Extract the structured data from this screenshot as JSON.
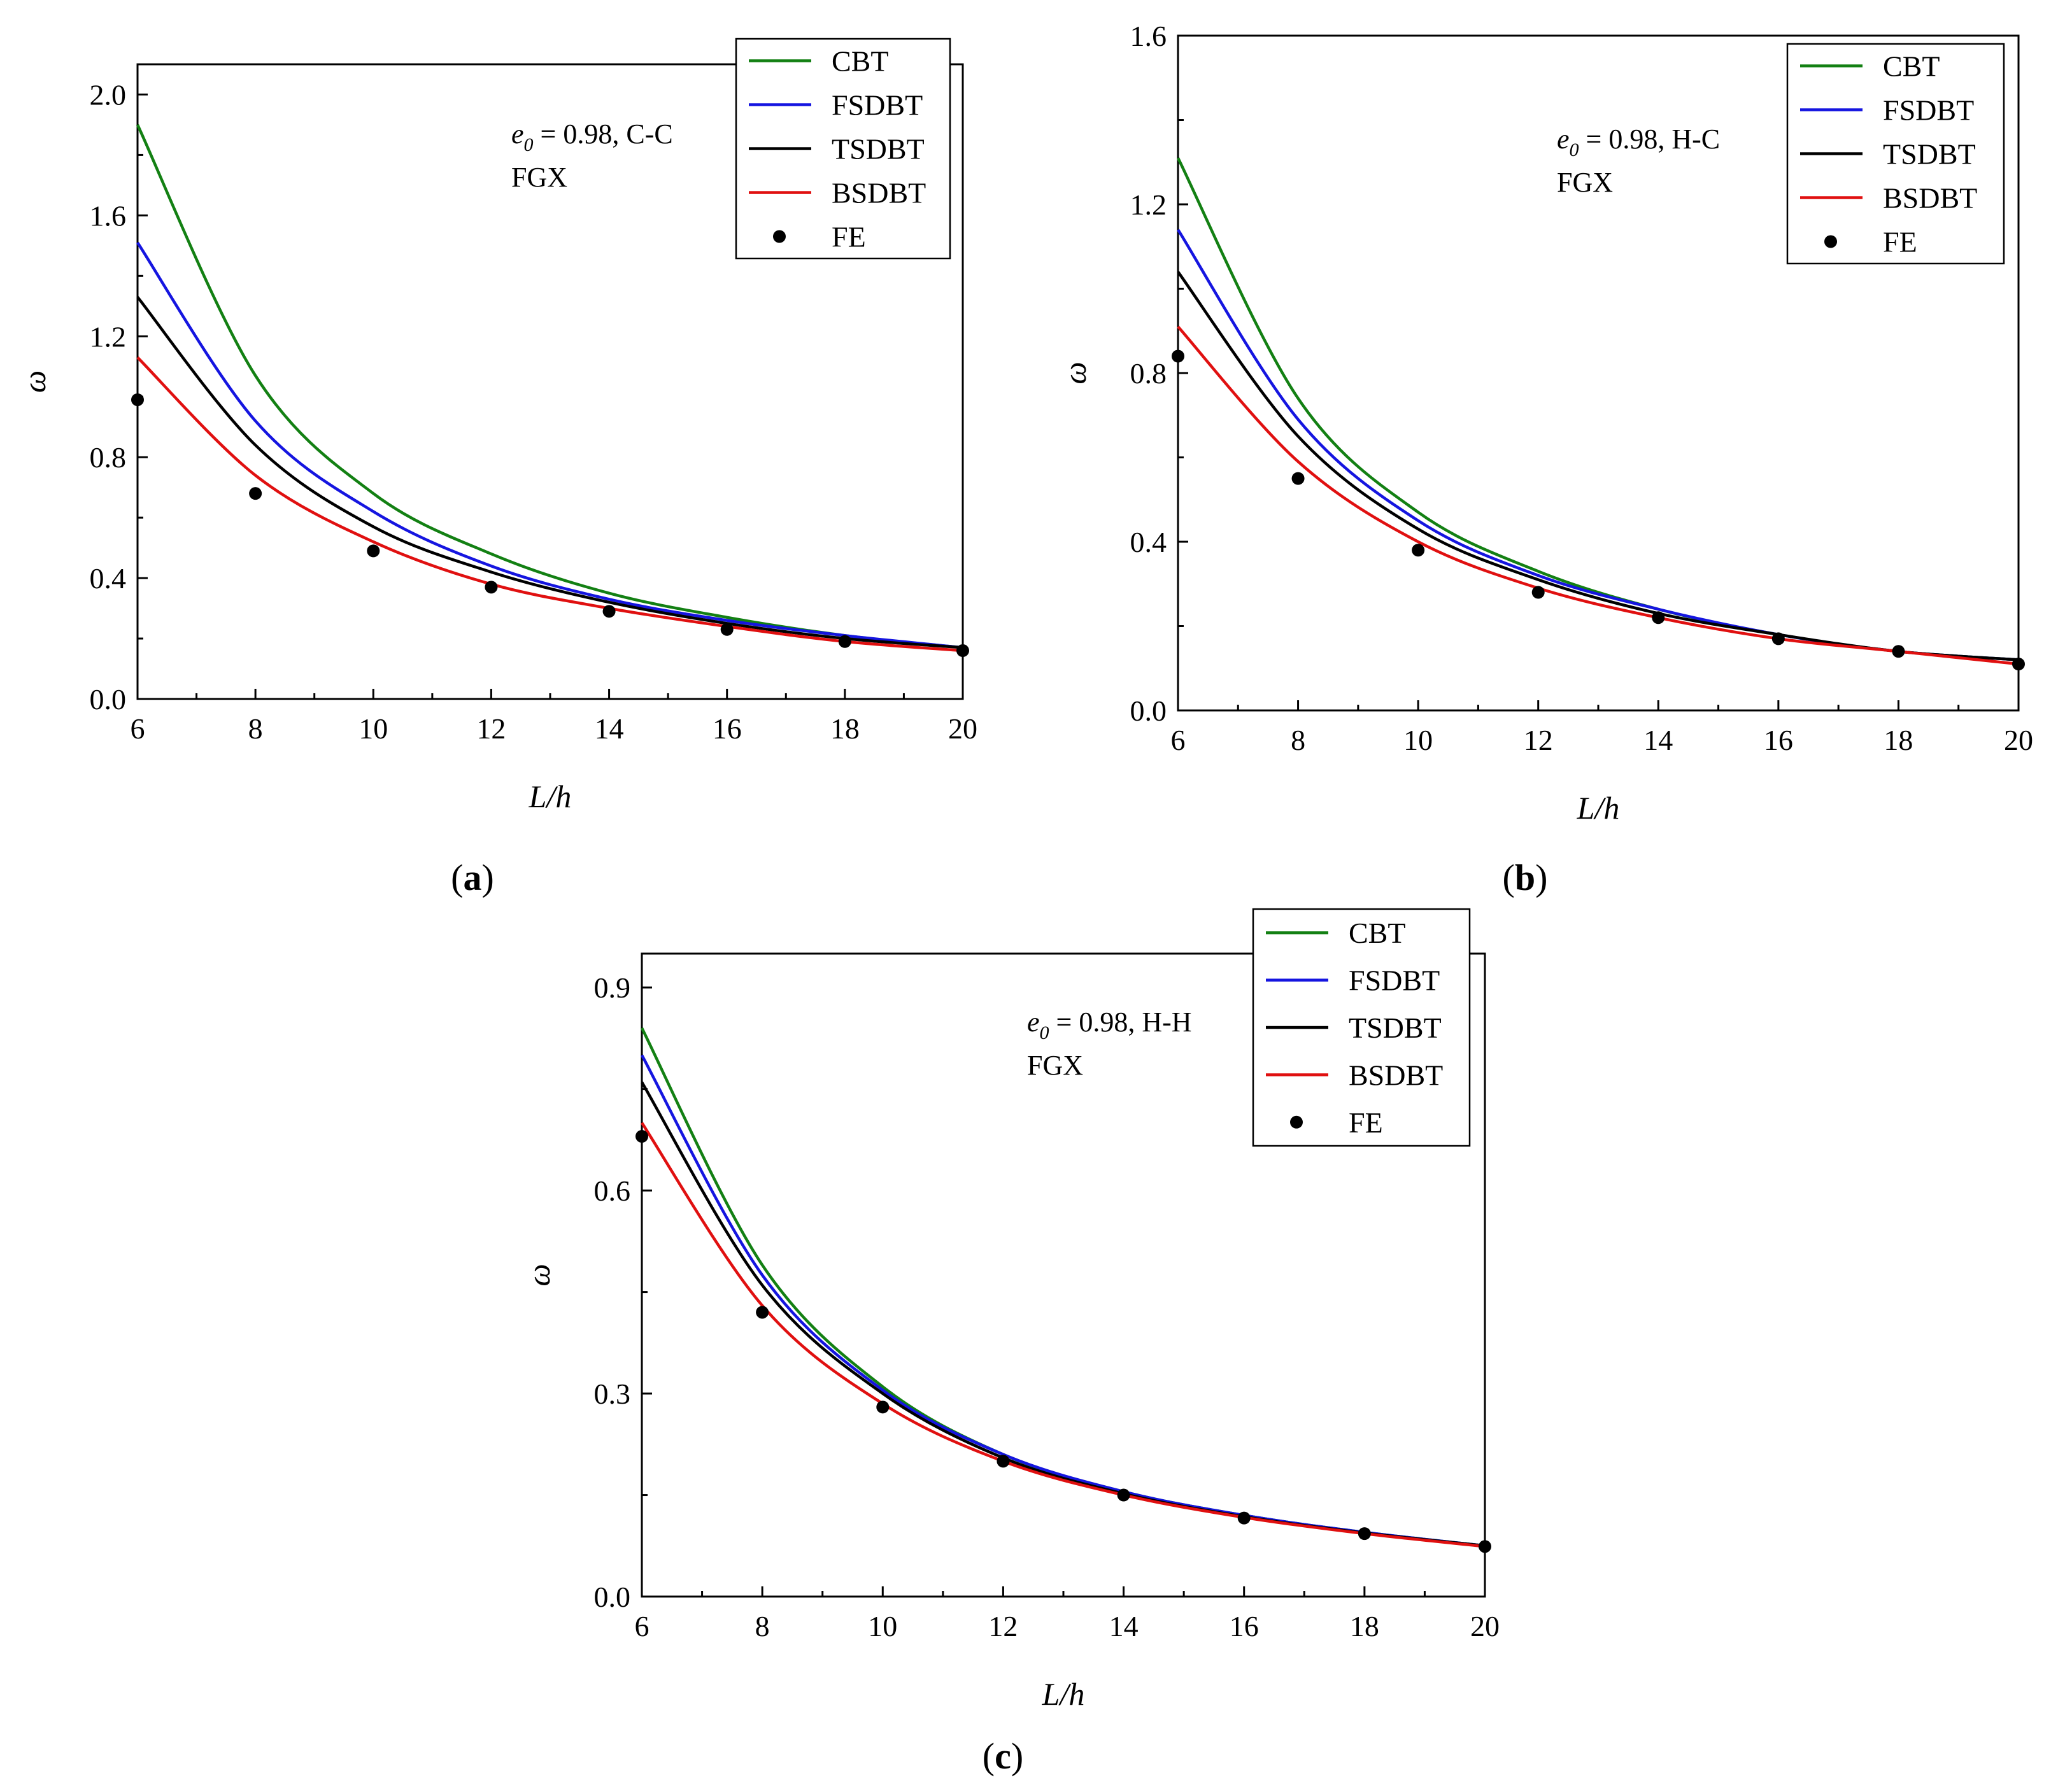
{
  "figure": {
    "series_style": {
      "CBT": "#138013",
      "FSDBT": "#1515e0",
      "TSDBT": "#000000",
      "BSDBT": "#e01010",
      "FE": "#000000"
    }
  },
  "chart_data": [
    {
      "panel": "a",
      "panel_label": "a",
      "type": "line",
      "xlabel": "L/h",
      "ylabel": "ω",
      "xlim": [
        6,
        20
      ],
      "ylim": [
        0.0,
        2.1
      ],
      "x_ticks": [
        6,
        8,
        10,
        12,
        14,
        16,
        18,
        20
      ],
      "x_tick_labels": [
        "6",
        "8",
        "10",
        "12",
        "14",
        "16",
        "18",
        "20"
      ],
      "y_ticks": [
        0.0,
        0.4,
        0.8,
        1.2,
        1.6,
        2.0
      ],
      "y_tick_labels": [
        "0.0",
        "0.4",
        "0.8",
        "1.2",
        "1.6",
        "2.0"
      ],
      "annotation": {
        "e_sym": "e",
        "e_sub": "0",
        "value_text": " = 0.98, C-C",
        "material": "FGX"
      },
      "legend": [
        "CBT",
        "FSDBT",
        "TSDBT",
        "BSDBT",
        "FE"
      ],
      "x": [
        6,
        8,
        10,
        12,
        14,
        16,
        18,
        20
      ],
      "series": [
        {
          "name": "CBT",
          "values": [
            1.9,
            1.07,
            0.68,
            0.48,
            0.35,
            0.27,
            0.21,
            0.17
          ]
        },
        {
          "name": "FSDBT",
          "values": [
            1.51,
            0.92,
            0.62,
            0.44,
            0.33,
            0.26,
            0.21,
            0.17
          ]
        },
        {
          "name": "TSDBT",
          "values": [
            1.33,
            0.84,
            0.57,
            0.42,
            0.32,
            0.25,
            0.2,
            0.17
          ]
        },
        {
          "name": "BSDBT",
          "values": [
            1.13,
            0.74,
            0.52,
            0.38,
            0.3,
            0.24,
            0.19,
            0.16
          ]
        },
        {
          "name": "FE",
          "values": [
            0.99,
            0.68,
            0.49,
            0.37,
            0.29,
            0.23,
            0.19,
            0.16
          ]
        }
      ]
    },
    {
      "panel": "b",
      "panel_label": "b",
      "type": "line",
      "xlabel": "L/h",
      "ylabel": "ω",
      "xlim": [
        6,
        20
      ],
      "ylim": [
        0.0,
        1.6
      ],
      "x_ticks": [
        6,
        8,
        10,
        12,
        14,
        16,
        18,
        20
      ],
      "x_tick_labels": [
        "6",
        "8",
        "10",
        "12",
        "14",
        "16",
        "18",
        "20"
      ],
      "y_ticks": [
        0.0,
        0.4,
        0.8,
        1.2,
        1.6
      ],
      "y_tick_labels": [
        "0.0",
        "0.4",
        "0.8",
        "1.2",
        "1.6"
      ],
      "annotation": {
        "e_sym": "e",
        "e_sub": "0",
        "value_text": " = 0.98, H-C",
        "material": "FGX"
      },
      "legend": [
        "CBT",
        "FSDBT",
        "TSDBT",
        "BSDBT",
        "FE"
      ],
      "x": [
        6,
        8,
        10,
        12,
        14,
        16,
        18,
        20
      ],
      "series": [
        {
          "name": "CBT",
          "values": [
            1.31,
            0.74,
            0.47,
            0.33,
            0.24,
            0.18,
            0.14,
            0.12
          ]
        },
        {
          "name": "FSDBT",
          "values": [
            1.14,
            0.69,
            0.45,
            0.32,
            0.24,
            0.18,
            0.14,
            0.12
          ]
        },
        {
          "name": "TSDBT",
          "values": [
            1.04,
            0.65,
            0.43,
            0.31,
            0.23,
            0.18,
            0.14,
            0.12
          ]
        },
        {
          "name": "BSDBT",
          "values": [
            0.91,
            0.59,
            0.4,
            0.29,
            0.22,
            0.17,
            0.14,
            0.11
          ]
        },
        {
          "name": "FE",
          "values": [
            0.84,
            0.55,
            0.38,
            0.28,
            0.22,
            0.17,
            0.14,
            0.11
          ]
        }
      ]
    },
    {
      "panel": "c",
      "panel_label": "c",
      "type": "line",
      "xlabel": "L/h",
      "ylabel": "ω",
      "xlim": [
        6,
        20
      ],
      "ylim": [
        0.0,
        0.95
      ],
      "x_ticks": [
        6,
        8,
        10,
        12,
        14,
        16,
        18,
        20
      ],
      "x_tick_labels": [
        "6",
        "8",
        "10",
        "12",
        "14",
        "16",
        "18",
        "20"
      ],
      "y_ticks": [
        0.0,
        0.3,
        0.6,
        0.9
      ],
      "y_tick_labels": [
        "0.0",
        "0.3",
        "0.6",
        "0.9"
      ],
      "annotation": {
        "e_sym": "e",
        "e_sub": "0",
        "value_text": " = 0.98, H-H",
        "material": "FGX"
      },
      "legend": [
        "CBT",
        "FSDBT",
        "TSDBT",
        "BSDBT",
        "FE"
      ],
      "x": [
        6,
        8,
        10,
        12,
        14,
        16,
        18,
        20
      ],
      "series": [
        {
          "name": "CBT",
          "values": [
            0.84,
            0.49,
            0.31,
            0.21,
            0.155,
            0.12,
            0.095,
            0.075
          ]
        },
        {
          "name": "FSDBT",
          "values": [
            0.8,
            0.475,
            0.305,
            0.21,
            0.155,
            0.12,
            0.095,
            0.075
          ]
        },
        {
          "name": "TSDBT",
          "values": [
            0.76,
            0.46,
            0.3,
            0.205,
            0.152,
            0.118,
            0.094,
            0.075
          ]
        },
        {
          "name": "BSDBT",
          "values": [
            0.7,
            0.43,
            0.285,
            0.2,
            0.15,
            0.117,
            0.093,
            0.074
          ]
        },
        {
          "name": "FE",
          "values": [
            0.68,
            0.42,
            0.28,
            0.2,
            0.15,
            0.116,
            0.093,
            0.074
          ]
        }
      ]
    }
  ]
}
